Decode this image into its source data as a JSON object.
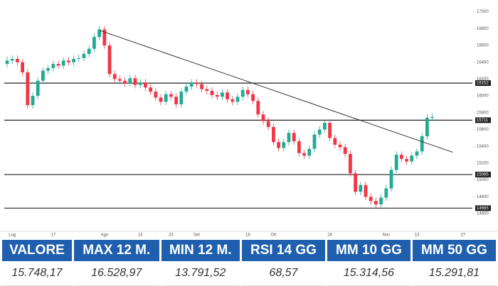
{
  "chart_data": {
    "type": "candlestick",
    "categories": [
      null,
      "Lug",
      null,
      null,
      null,
      null,
      null,
      null,
      null,
      "17",
      null,
      null,
      null,
      null,
      null,
      null,
      null,
      null,
      null,
      "Ago",
      null,
      null,
      null,
      null,
      null,
      null,
      "14",
      null,
      null,
      null,
      null,
      null,
      "23",
      null,
      null,
      null,
      null,
      "Set",
      null,
      null,
      null,
      null,
      null,
      null,
      null,
      null,
      null,
      "18",
      null,
      null,
      null,
      null,
      "Ott",
      null,
      null,
      null,
      null,
      null,
      null,
      null,
      null,
      null,
      null,
      "16",
      null,
      null,
      null,
      null,
      null,
      null,
      null,
      null,
      null,
      null,
      "Nov",
      null,
      null,
      null,
      null,
      null,
      "13",
      null,
      null,
      null,
      null,
      null,
      null,
      null,
      null,
      "27"
    ],
    "open": [
      16380,
      16420,
      16440,
      16400,
      16280,
      15890,
      16000,
      16180,
      16300,
      16330,
      16380,
      16360,
      16420,
      16400,
      16440,
      16450,
      16500,
      16560,
      16700,
      16790,
      16600,
      16260,
      16200,
      16180,
      16150,
      16210,
      16130,
      16160,
      16100,
      16050,
      15980,
      15930,
      16020,
      15990,
      15900,
      16050,
      16110,
      16160,
      16140,
      16080,
      16060,
      16010,
      15990,
      16040,
      15960,
      15930,
      15990,
      16070,
      16020,
      15940,
      15780,
      15700,
      15630,
      15450,
      15380,
      15450,
      15560,
      15460,
      15320,
      15290,
      15370,
      15540,
      15600,
      15680,
      15500,
      15420,
      15390,
      15310,
      15080,
      14860,
      14940,
      14800,
      14750,
      14710,
      14790,
      14900,
      15120,
      15300,
      15250,
      15220,
      15290,
      15340,
      15520,
      15740,
      null,
      null,
      null,
      null,
      null,
      null
    ],
    "high": [
      16470,
      16480,
      16480,
      16440,
      16320,
      16040,
      16220,
      16340,
      16370,
      16420,
      16420,
      16460,
      16460,
      16480,
      16490,
      16540,
      16600,
      16740,
      16830,
      16830,
      16640,
      16300,
      16240,
      16220,
      16250,
      16250,
      16200,
      16200,
      16140,
      16090,
      16020,
      16060,
      16060,
      16030,
      16090,
      16150,
      16200,
      16200,
      16180,
      16120,
      16100,
      16050,
      16080,
      16080,
      16000,
      16030,
      16110,
      16110,
      16060,
      15980,
      15820,
      15740,
      15670,
      15490,
      15490,
      15600,
      15600,
      15500,
      15360,
      15410,
      15580,
      15640,
      15720,
      15720,
      15540,
      15460,
      15430,
      15350,
      15120,
      14980,
      14980,
      14840,
      14790,
      14830,
      14940,
      15160,
      15340,
      15340,
      15290,
      15330,
      15380,
      15560,
      15780,
      15790,
      null,
      null,
      null,
      null,
      null,
      null
    ],
    "low": [
      16340,
      16380,
      16360,
      16240,
      15850,
      15850,
      15960,
      16140,
      16260,
      16290,
      16320,
      16320,
      16360,
      16360,
      16400,
      16410,
      16460,
      16520,
      16660,
      16560,
      16220,
      16160,
      16140,
      16110,
      16110,
      16090,
      16090,
      16060,
      16010,
      15940,
      15890,
      15890,
      15950,
      15860,
      15860,
      16010,
      16070,
      16100,
      16040,
      16020,
      15970,
      15950,
      15950,
      15920,
      15890,
      15890,
      15950,
      15980,
      15900,
      15740,
      15660,
      15590,
      15410,
      15340,
      15340,
      15410,
      15420,
      15280,
      15250,
      15250,
      15330,
      15500,
      15560,
      15460,
      15380,
      15350,
      15270,
      15040,
      14820,
      14820,
      14760,
      14710,
      14670,
      14670,
      14750,
      14860,
      15080,
      15210,
      15180,
      15180,
      15250,
      15300,
      15480,
      15700,
      null,
      null,
      null,
      null,
      null,
      null
    ],
    "close": [
      16420,
      16440,
      16400,
      16280,
      15890,
      16000,
      16180,
      16300,
      16330,
      16380,
      16360,
      16420,
      16400,
      16440,
      16450,
      16500,
      16560,
      16700,
      16790,
      16600,
      16260,
      16200,
      16180,
      16150,
      16210,
      16130,
      16160,
      16100,
      16050,
      15980,
      15930,
      16020,
      15990,
      15900,
      16050,
      16110,
      16160,
      16140,
      16080,
      16060,
      16010,
      15990,
      16040,
      15960,
      15930,
      15990,
      16070,
      16020,
      15940,
      15780,
      15700,
      15630,
      15450,
      15380,
      15450,
      15560,
      15460,
      15320,
      15290,
      15370,
      15540,
      15600,
      15680,
      15500,
      15420,
      15390,
      15310,
      15080,
      14860,
      14940,
      14800,
      14750,
      14710,
      14790,
      14900,
      15120,
      15300,
      15250,
      15220,
      15290,
      15340,
      15520,
      15740,
      15750,
      null,
      null,
      null,
      null,
      null,
      null
    ],
    "up_color": "#22ab94",
    "down_color": "#f23645",
    "ylim": [
      14440,
      17140
    ],
    "yticks": [
      14600,
      14800,
      15000,
      15200,
      15400,
      15600,
      15800,
      16000,
      16200,
      16400,
      16600,
      16800,
      17000
    ],
    "levels": [
      16152,
      15711,
      15065,
      14665
    ],
    "trendline": {
      "x": [
        18,
        87
      ],
      "values": [
        16780,
        15330
      ]
    }
  },
  "table": {
    "headers": [
      "VALORE",
      "MAX 12 M.",
      "MIN 12 M.",
      "RSI 14 GG",
      "MM 10 GG",
      "MM 50 GG"
    ],
    "rows": [
      [
        "15.748,17",
        "16.528,97",
        "13.791,52",
        "68,57",
        "15.314,56",
        "15.291,81"
      ]
    ]
  }
}
